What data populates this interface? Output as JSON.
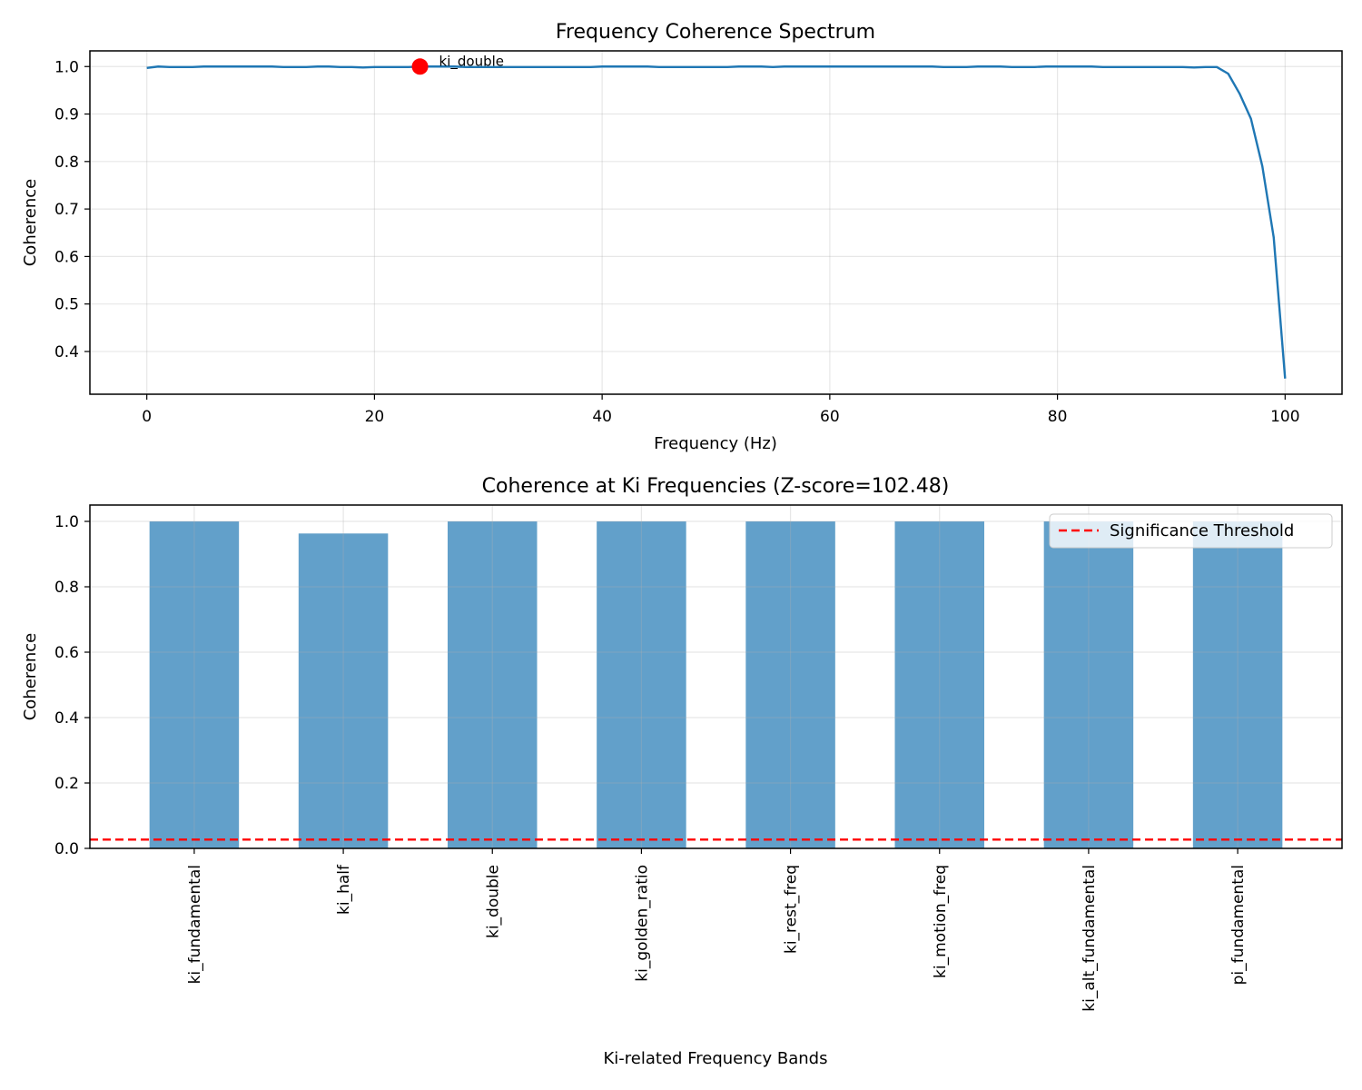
{
  "chart_data": [
    {
      "type": "line",
      "title": "Frequency Coherence Spectrum",
      "xlabel": "Frequency (Hz)",
      "ylabel": "Coherence",
      "xlim": [
        -5,
        105
      ],
      "ylim": [
        0.31,
        1.033
      ],
      "xticks": [
        0,
        20,
        40,
        60,
        80,
        100
      ],
      "yticks": [
        0.4,
        0.5,
        0.6,
        0.7,
        0.8,
        0.9,
        1.0
      ],
      "grid": true,
      "line_color": "#1f77b4",
      "series": [
        {
          "x": [
            0,
            1,
            2,
            3,
            4,
            5,
            6,
            7,
            8,
            9,
            10,
            11,
            12,
            13,
            14,
            15,
            16,
            17,
            18,
            19,
            20,
            21,
            22,
            23,
            24,
            25,
            26,
            27,
            28,
            29,
            30,
            31,
            32,
            33,
            34,
            35,
            36,
            37,
            38,
            39,
            40,
            41,
            42,
            43,
            44,
            45,
            46,
            47,
            48,
            49,
            50,
            51,
            52,
            53,
            54,
            55,
            56,
            57,
            58,
            59,
            60,
            61,
            62,
            63,
            64,
            65,
            66,
            67,
            68,
            69,
            70,
            71,
            72,
            73,
            74,
            75,
            76,
            77,
            78,
            79,
            80,
            81,
            82,
            83,
            84,
            85,
            86,
            87,
            88,
            89,
            90,
            91,
            92,
            93,
            94,
            95,
            96,
            97,
            98,
            99,
            100
          ],
          "y": [
            0.997,
            1.0,
            0.999,
            0.999,
            0.999,
            1.0,
            1.0,
            1.0,
            1.0,
            1.0,
            1.0,
            1.0,
            0.999,
            0.999,
            0.999,
            1.0,
            1.0,
            0.999,
            0.999,
            0.998,
            0.999,
            0.999,
            0.999,
            0.999,
            1.0,
            1.0,
            1.0,
            1.0,
            0.999,
            0.999,
            0.999,
            0.999,
            0.999,
            0.999,
            0.999,
            0.999,
            0.999,
            0.999,
            0.999,
            0.999,
            1.0,
            1.0,
            1.0,
            1.0,
            1.0,
            0.999,
            0.999,
            0.999,
            0.999,
            0.999,
            0.999,
            0.999,
            1.0,
            1.0,
            1.0,
            0.999,
            1.0,
            1.0,
            1.0,
            1.0,
            1.0,
            1.0,
            1.0,
            1.0,
            1.0,
            1.0,
            1.0,
            1.0,
            1.0,
            1.0,
            0.999,
            0.999,
            0.999,
            1.0,
            1.0,
            1.0,
            0.999,
            0.999,
            0.999,
            1.0,
            1.0,
            1.0,
            1.0,
            1.0,
            0.999,
            0.999,
            0.999,
            0.999,
            0.999,
            0.999,
            0.999,
            0.999,
            0.998,
            0.999,
            0.999,
            0.985,
            0.943,
            0.89,
            0.79,
            0.64,
            0.343
          ]
        }
      ],
      "annotations": [
        {
          "label": "ki_double",
          "x": 24,
          "y": 1.0,
          "marker_color": "#ff0000"
        }
      ]
    },
    {
      "type": "bar",
      "title": "Coherence at Ki Frequencies (Z-score=102.48)",
      "xlabel": "Ki-related Frequency Bands",
      "ylabel": "Coherence",
      "ylim": [
        0,
        1.05
      ],
      "yticks": [
        0.0,
        0.2,
        0.4,
        0.6,
        0.8,
        1.0
      ],
      "grid": true,
      "bar_color": "#1f77b4",
      "categories": [
        "ki_fundamental",
        "ki_half",
        "ki_double",
        "ki_golden_ratio",
        "ki_rest_freq",
        "ki_motion_freq",
        "ki_alt_fundamental",
        "pi_fundamental"
      ],
      "values": [
        1.0,
        0.963,
        1.0,
        1.0,
        1.0,
        1.0,
        1.0,
        1.0
      ],
      "threshold": {
        "label": "Significance Threshold",
        "value": 0.027,
        "color": "#ff0000"
      },
      "legend_position": "upper right"
    }
  ]
}
